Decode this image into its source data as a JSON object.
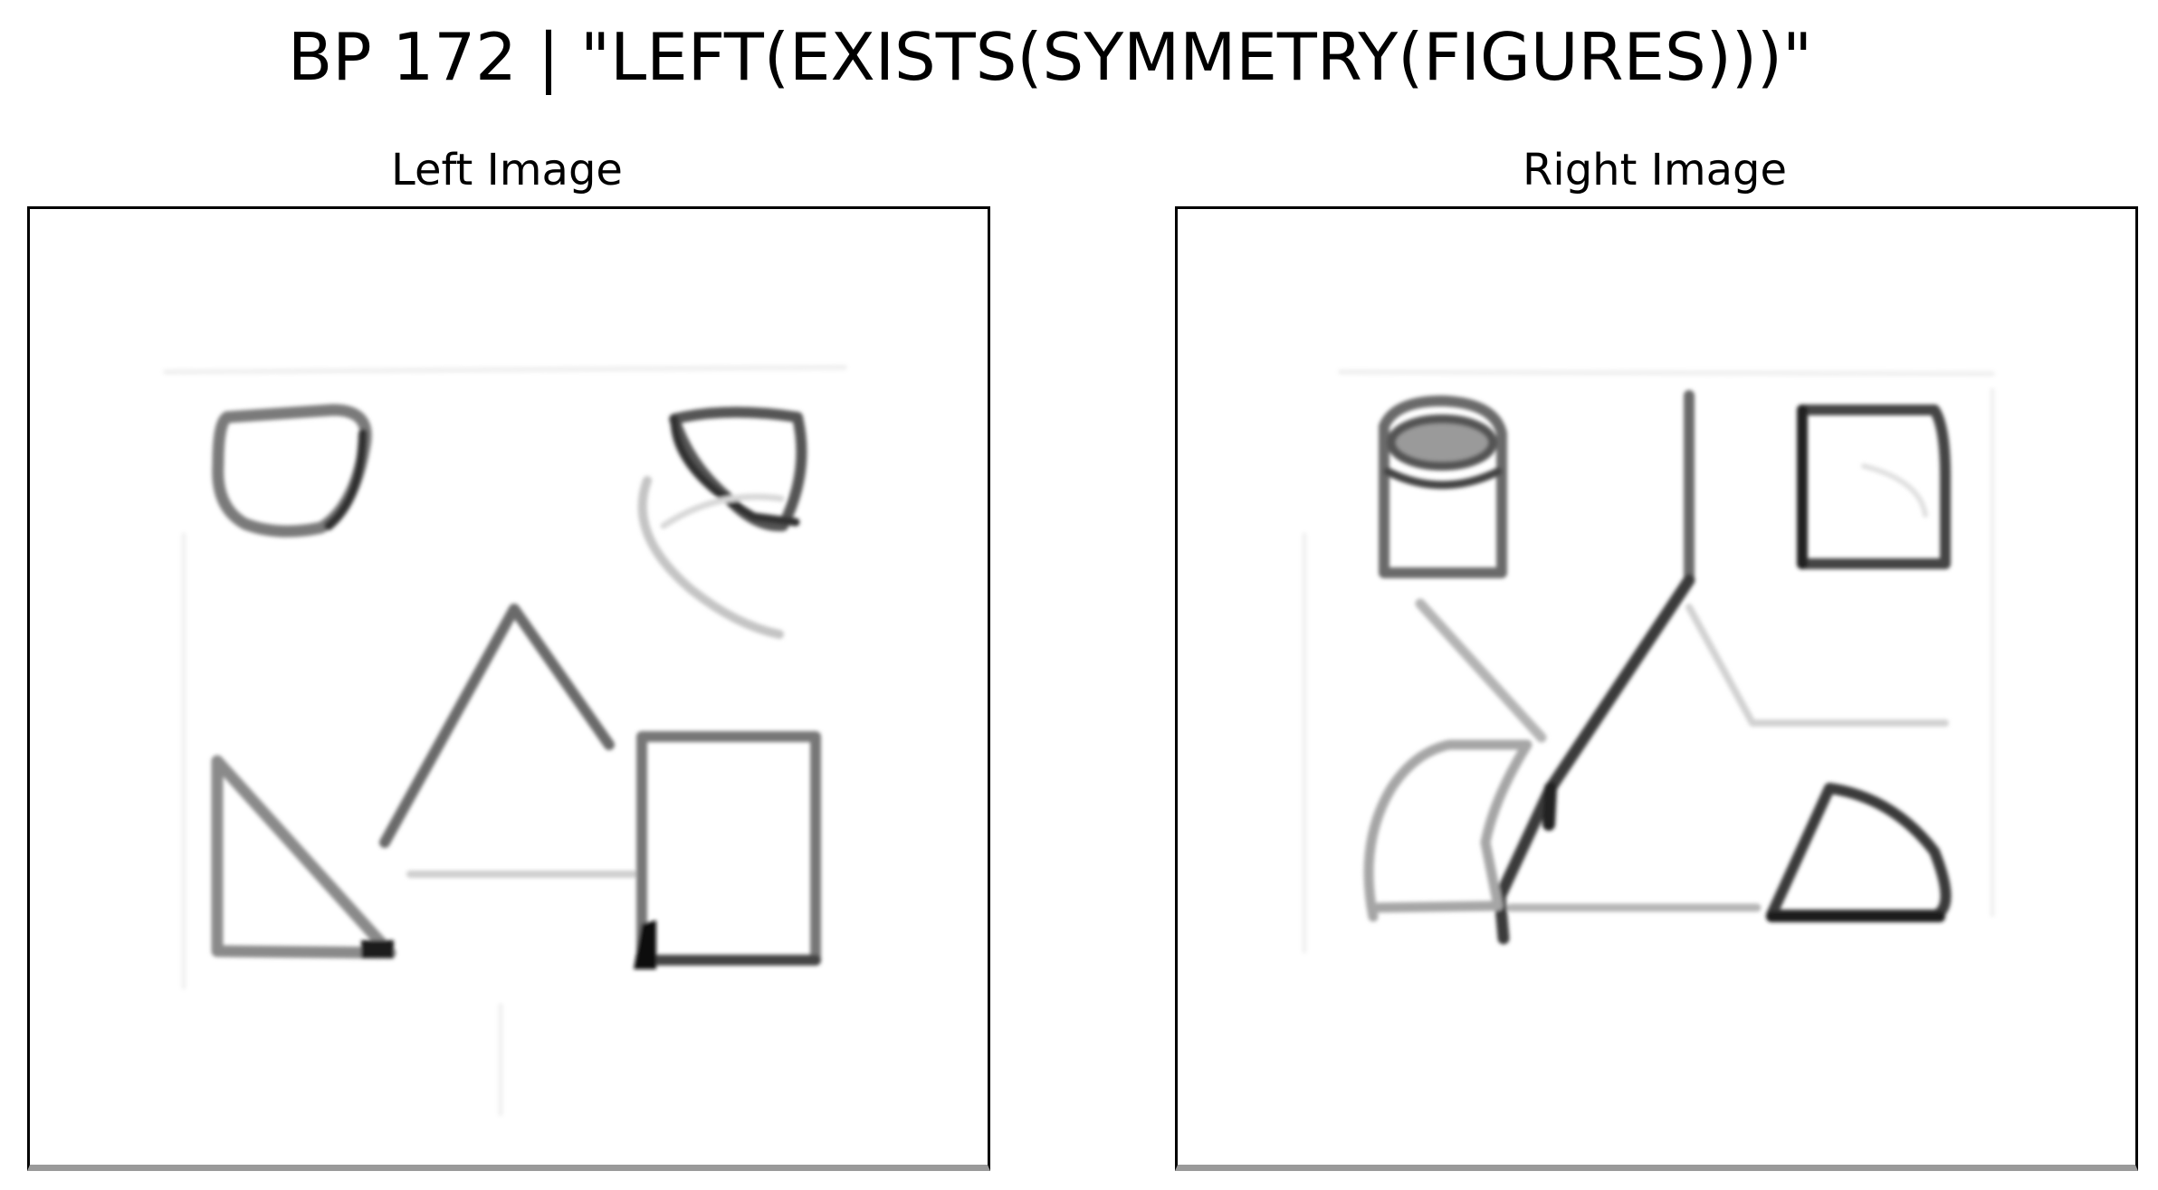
{
  "title": "BP 172 | \"LEFT(EXISTS(SYMMETRY(FIGURES)))\"",
  "panels": {
    "left": {
      "title": "Left Image"
    },
    "right": {
      "title": "Right Image"
    }
  },
  "colors": {
    "background": "#ffffff",
    "stroke_dark": "#222222",
    "stroke_mid": "#6e6e6e",
    "stroke_light": "#b8b8b8",
    "frame_bottom": "#9a9a9a"
  }
}
